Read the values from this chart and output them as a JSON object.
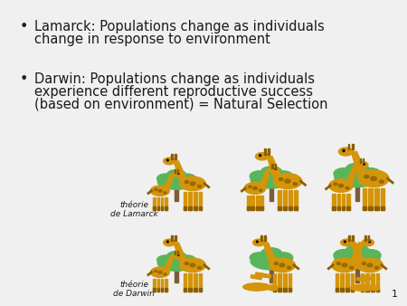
{
  "background_color": "#ffffff",
  "slide_bg": "#f0f0f0",
  "bullet1_line1": "Lamarck: Populations change as individuals",
  "bullet1_line2": "change in response to environment",
  "bullet2_line1": "Darwin: Populations change as individuals",
  "bullet2_line2": "experience different reproductive success",
  "bullet2_line3": "(based on environment) = Natural Selection",
  "label_lamarck": "théorie\nde Lamarck",
  "label_darwin": "théorie\nde Darwin",
  "page_number": "1",
  "text_color": "#1a1a1a",
  "font_size_bullet": 10.5,
  "font_size_label": 6.5,
  "font_size_page": 8,
  "tree_color": "#5ab55a",
  "trunk_color": "#7a5c3a",
  "giraffe_color": "#d4950a",
  "giraffe_dark": "#8b5e00"
}
